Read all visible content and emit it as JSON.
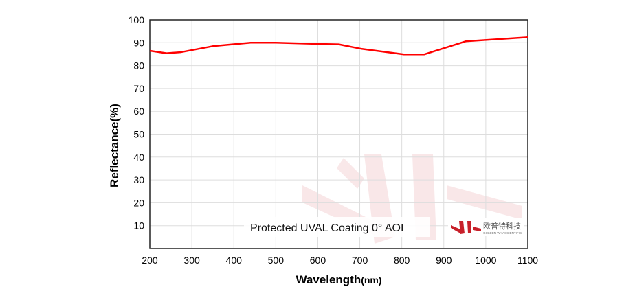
{
  "chart_data": {
    "type": "line",
    "title": "",
    "xlabel": "Wavelength",
    "xlabel_unit": "(nm)",
    "ylabel": "Reflectance(%)",
    "xlim": [
      200,
      1100
    ],
    "ylim": [
      0,
      100
    ],
    "xticks": [
      200,
      300,
      400,
      500,
      600,
      700,
      800,
      900,
      1000,
      1100
    ],
    "yticks": [
      10,
      20,
      30,
      40,
      50,
      60,
      70,
      80,
      90,
      100
    ],
    "grid": true,
    "series": [
      {
        "color": "#ff0000",
        "x": [
          200,
          240,
          275,
          350,
          440,
          500,
          600,
          650,
          705,
          805,
          853,
          952,
          1100
        ],
        "y": [
          86.5,
          85.4,
          85.9,
          88.5,
          90.0,
          90.0,
          89.5,
          89.3,
          87.3,
          84.9,
          84.9,
          90.6,
          92.4
        ]
      }
    ],
    "annotation": "Protected UVAL Coating  0°  AOI",
    "logo": {
      "name": "欧普特科技",
      "subtitle": "GOLDEN WAY SCIENTIFIC",
      "color": "#c8202a"
    }
  }
}
